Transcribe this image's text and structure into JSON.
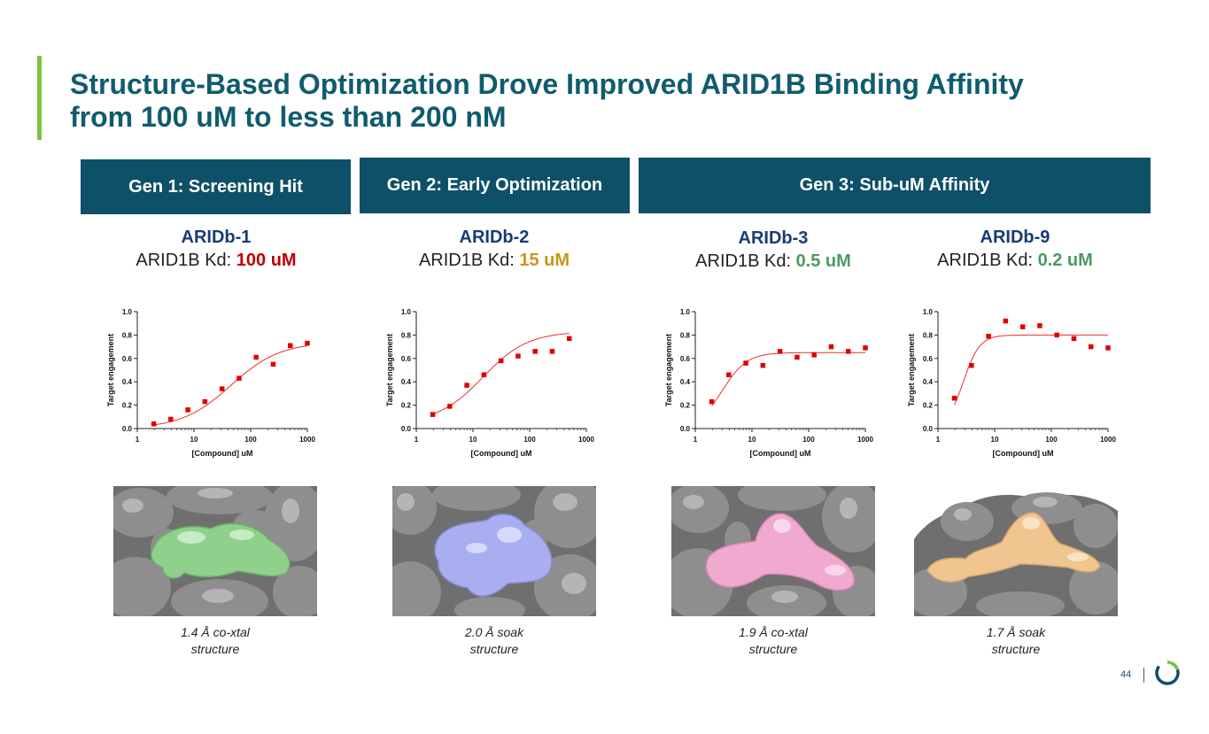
{
  "title": {
    "line1": "Structure-Based Optimization Drove Improved ARID1B Binding Affinity",
    "line2": "from 100 uM to less than 200 nM"
  },
  "generations": [
    {
      "label": "Gen 1: Screening Hit"
    },
    {
      "label": "Gen 2: Early Optimization"
    },
    {
      "label": "Gen 3: Sub-uM Affinity"
    }
  ],
  "compounds": [
    {
      "name": "ARIDb-1",
      "kd_prefix": "ARID1B Kd: ",
      "kd_value": "100 uM",
      "kd_color": "#c00000",
      "caption_line1": "1.4 Å co-xtal",
      "caption_line2": "structure",
      "ligand_color": "#8fd18c"
    },
    {
      "name": "ARIDb-2",
      "kd_prefix": "ARID1B Kd: ",
      "kd_value": "15 uM",
      "kd_color": "#c9961a",
      "caption_line1": "2.0 Å soak",
      "caption_line2": "structure",
      "ligand_color": "#a8aef0"
    },
    {
      "name": "ARIDb-3",
      "kd_prefix": "ARID1B Kd: ",
      "kd_value": "0.5 uM",
      "kd_color": "#4e9a60",
      "caption_line1": "1.9 Å co-xtal",
      "caption_line2": "structure",
      "ligand_color": "#f0a9cf"
    },
    {
      "name": "ARIDb-9",
      "kd_prefix": "ARID1B Kd: ",
      "kd_value": "0.2 uM",
      "kd_color": "#4e9a60",
      "caption_line1": "1.7 Å soak",
      "caption_line2": "structure",
      "ligand_color": "#f0c590"
    }
  ],
  "chart_data": [
    {
      "type": "scatter",
      "title": "ARIDb-1",
      "xlabel": "[Compound] uM",
      "ylabel": "Target engagement",
      "xscale": "log",
      "xlim": [
        1,
        1000
      ],
      "ylim": [
        0,
        1.0
      ],
      "xticks": [
        "1",
        "10",
        "100",
        "1000"
      ],
      "yticks": [
        "0.0",
        "0.2",
        "0.4",
        "0.6",
        "0.8",
        "1.0"
      ],
      "x": [
        1.95,
        3.9,
        7.8,
        15.6,
        31.25,
        62.5,
        125,
        250,
        500,
        1000
      ],
      "y": [
        0.04,
        0.08,
        0.16,
        0.23,
        0.34,
        0.43,
        0.61,
        0.55,
        0.71,
        0.73
      ],
      "fit": {
        "bottom": 0.0,
        "top": 0.74,
        "ec50": 45,
        "hill": 1.0
      }
    },
    {
      "type": "scatter",
      "title": "ARIDb-2",
      "xlabel": "[Compound] uM",
      "ylabel": "Target engagement",
      "xscale": "log",
      "xlim": [
        1,
        1000
      ],
      "ylim": [
        0,
        1.0
      ],
      "xticks": [
        "1",
        "10",
        "100",
        "1000"
      ],
      "yticks": [
        "0.0",
        "0.2",
        "0.4",
        "0.6",
        "0.8",
        "1.0"
      ],
      "x": [
        1.95,
        3.9,
        7.8,
        15.6,
        31.25,
        62.5,
        125,
        250,
        500
      ],
      "y": [
        0.12,
        0.19,
        0.37,
        0.46,
        0.58,
        0.62,
        0.66,
        0.66,
        0.77
      ],
      "fit": {
        "bottom": 0.05,
        "top": 0.83,
        "ec50": 15,
        "hill": 1.1
      }
    },
    {
      "type": "scatter",
      "title": "ARIDb-3",
      "xlabel": "[Compound] uM",
      "ylabel": "Target engagement",
      "xscale": "log",
      "xlim": [
        1,
        1000
      ],
      "ylim": [
        0,
        1.0
      ],
      "xticks": [
        "1",
        "10",
        "100",
        "1000"
      ],
      "yticks": [
        "0.0",
        "0.2",
        "0.4",
        "0.6",
        "0.8",
        "1.0"
      ],
      "x": [
        1.95,
        3.9,
        7.8,
        15.6,
        31.25,
        62.5,
        125,
        250,
        500,
        1000
      ],
      "y": [
        0.23,
        0.46,
        0.56,
        0.54,
        0.66,
        0.61,
        0.63,
        0.7,
        0.66,
        0.69
      ],
      "fit": {
        "bottom": 0.0,
        "top": 0.65,
        "ec50": 3.0,
        "hill": 2.0
      }
    },
    {
      "type": "scatter",
      "title": "ARIDb-9",
      "xlabel": "[Compound] uM",
      "ylabel": "Target engagement",
      "xscale": "log",
      "xlim": [
        1,
        1000
      ],
      "ylim": [
        0,
        1.0
      ],
      "xticks": [
        "1",
        "10",
        "100",
        "1000"
      ],
      "yticks": [
        "0.0",
        "0.2",
        "0.4",
        "0.6",
        "0.8",
        "1.0"
      ],
      "x": [
        1.95,
        3.9,
        7.8,
        15.6,
        31.25,
        62.5,
        125,
        250,
        500,
        1000
      ],
      "y": [
        0.26,
        0.54,
        0.79,
        0.92,
        0.87,
        0.88,
        0.8,
        0.77,
        0.7,
        0.69
      ],
      "fit": {
        "bottom": 0.0,
        "top": 0.8,
        "ec50": 2.8,
        "hill": 3.0
      }
    }
  ],
  "footer": {
    "page_number": "44"
  },
  "colors": {
    "title": "#0f5c6e",
    "gen_box": "#0e5068",
    "accent": "#7dc242",
    "data_point": "#e00000",
    "fit_line": "#e8302c"
  }
}
